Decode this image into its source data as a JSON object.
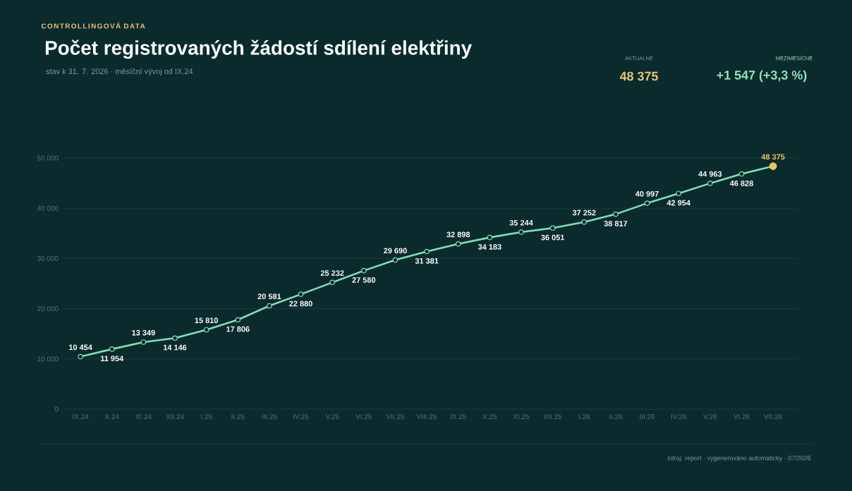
{
  "chart_data": {
    "type": "line",
    "title": "Počet registrovaných žádostí sdílení elektřiny",
    "subtitle": "stav k 31. 7. 2026 · měsíční vývoj od IX.24",
    "annotations": [
      "CONTROLLINGOVÁ DATA",
      "AKTUÁLNĚ",
      "48 375",
      "MEZIMĚSÍČNĚ",
      "+1 547  (+3,3 %)",
      "zdroj: report · vygenerováno automaticky · 07/2026"
    ],
    "categories": [
      "IX.24",
      "X.24",
      "XI.24",
      "XII.24",
      "I.25",
      "II.25",
      "III.25",
      "IV.25",
      "V.25",
      "VI.25",
      "VII.25",
      "VIII.25",
      "IX.25",
      "X.25",
      "XI.25",
      "XII.25",
      "I.26",
      "II.26",
      "III.26",
      "IV.26",
      "V.26",
      "VI.26",
      "VII.26"
    ],
    "series": [
      {
        "color": "#7fe0b4",
        "values": [
          10454,
          11954,
          13349,
          14146,
          15810,
          17806,
          20581,
          22880,
          25232,
          27580,
          29690,
          31381,
          32898,
          34183,
          35244,
          36051,
          37252,
          38817,
          40997,
          42954,
          44963,
          46828,
          48375
        ],
        "colors": [
          "#e8f5ef",
          "#e8f5ef",
          "#e8f5ef",
          "#e8f5ef",
          "#e8f5ef",
          "#e8f5ef",
          "#e8f5ef",
          "#e8f5ef",
          "#e8f5ef",
          "#e8f5ef",
          "#e8f5ef",
          "#e8f5ef",
          "#e8f5ef",
          "#e8f5ef",
          "#e8f5ef",
          "#e8f5ef",
          "#e8f5ef",
          "#e8f5ef",
          "#e8f5ef",
          "#e8f5ef",
          "#e8f5ef",
          "#e8f5ef",
          "#f2c45a"
        ],
        "value_labels": [
          "10 454",
          "11 954",
          "13 349",
          "14 146",
          "15 810",
          "17 806",
          "20 581",
          "22 880",
          "25 232",
          "27 580",
          "29 690",
          "31 381",
          "32 898",
          "34 183",
          "35 244",
          "36 051",
          "37 252",
          "38 817",
          "40 997",
          "42 954",
          "44 963",
          "46 828",
          "48 375"
        ]
      }
    ],
    "ylim": [
      0,
      50000
    ],
    "yticks": [
      {
        "value": 0,
        "label": "0"
      },
      {
        "value": 10000,
        "label": "10 000"
      },
      {
        "value": 20000,
        "label": "20 000"
      },
      {
        "value": 30000,
        "label": "30 000"
      },
      {
        "value": 40000,
        "label": "40 000"
      },
      {
        "value": 50000,
        "label": "50 000"
      }
    ],
    "grid": "y",
    "marker": "circle"
  }
}
